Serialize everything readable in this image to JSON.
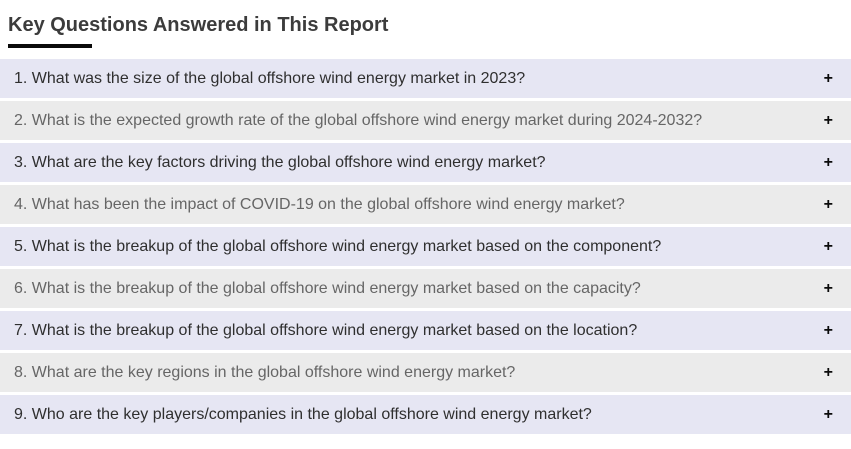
{
  "header": {
    "title": "Key Questions Answered in This Report"
  },
  "faq": {
    "expand_icon": "+",
    "expand_icon_name": "plus-icon",
    "items": [
      {
        "number": "1.",
        "text": "What was the size of the global offshore wind energy market in 2023?"
      },
      {
        "number": "2.",
        "text": "What is the expected growth rate of the global offshore wind energy market during 2024-2032?"
      },
      {
        "number": "3.",
        "text": "What are the key factors driving the global offshore wind energy market?"
      },
      {
        "number": "4.",
        "text": "What has been the impact of COVID-19 on the global offshore wind energy market?"
      },
      {
        "number": "5.",
        "text": "What is the breakup of the global offshore wind energy market based on the component?"
      },
      {
        "number": "6.",
        "text": "What is the breakup of the global offshore wind energy market based on the capacity?"
      },
      {
        "number": "7.",
        "text": "What is the breakup of the global offshore wind energy market based on the location?"
      },
      {
        "number": "8.",
        "text": "What are the key regions in the global offshore wind energy market?"
      },
      {
        "number": "9.",
        "text": "Who are the key players/companies in the global offshore wind energy market?"
      }
    ]
  },
  "colors": {
    "title": "#3c3c3c",
    "underline": "#0a0a0a",
    "row_odd_bg": "#e6e6f3",
    "row_even_bg": "#ebebeb",
    "row_odd_text": "#2f2f2f",
    "row_even_text": "#666666",
    "plus": "#0a0a0a",
    "page_bg": "#ffffff"
  }
}
